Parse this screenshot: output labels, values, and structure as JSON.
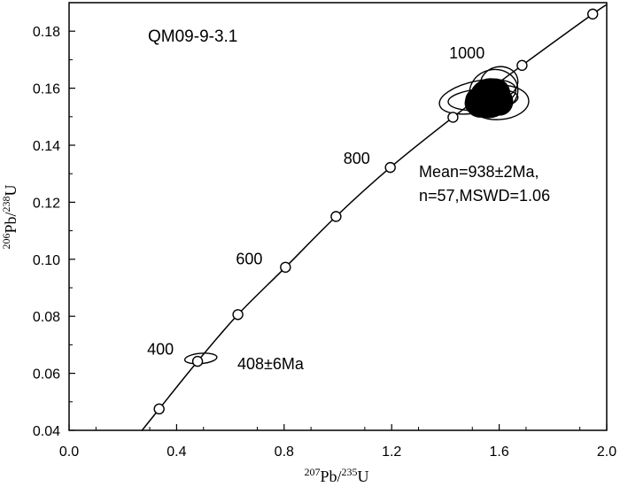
{
  "chart_data": {
    "type": "scatter",
    "title": "QM09-9-3.1",
    "xlabel": {
      "sup1": "207",
      "main1": "Pb/",
      "sup2": "235",
      "main2": "U"
    },
    "ylabel": {
      "sup1": "206",
      "main1": "Pb/",
      "sup2": "238",
      "main2": "U"
    },
    "xlim": [
      0.0,
      2.0
    ],
    "ylim": [
      0.04,
      0.19
    ],
    "x_ticks": [
      "0.0",
      "0.4",
      "0.8",
      "1.2",
      "1.6",
      "2.0"
    ],
    "x_tick_values": [
      0.0,
      0.4,
      0.8,
      1.2,
      1.6,
      2.0
    ],
    "y_ticks": [
      "0.04",
      "0.06",
      "0.08",
      "0.10",
      "0.12",
      "0.14",
      "0.16",
      "0.18"
    ],
    "y_tick_values": [
      0.04,
      0.06,
      0.08,
      0.1,
      0.12,
      0.14,
      0.16,
      0.18
    ],
    "grid": false,
    "concordia_markers": [
      {
        "x": 0.335,
        "y": 0.0475
      },
      {
        "x": 0.478,
        "y": 0.0642
      },
      {
        "x": 0.628,
        "y": 0.0806
      },
      {
        "x": 0.805,
        "y": 0.0972
      },
      {
        "x": 0.993,
        "y": 0.115
      },
      {
        "x": 1.195,
        "y": 0.1322
      },
      {
        "x": 1.428,
        "y": 0.1498
      },
      {
        "x": 1.685,
        "y": 0.168
      },
      {
        "x": 1.948,
        "y": 0.186
      }
    ],
    "age_labels": [
      {
        "text": "400",
        "x": 0.34,
        "y": 0.0665
      },
      {
        "text": "600",
        "x": 0.67,
        "y": 0.0983
      },
      {
        "text": "800",
        "x": 1.07,
        "y": 0.1335
      },
      {
        "text": "1000",
        "x": 1.48,
        "y": 0.1705
      }
    ],
    "error_ellipses_open": [
      {
        "cx": 0.49,
        "cy": 0.0652,
        "rx": 0.06,
        "ry": 0.0018
      },
      {
        "cx": 1.52,
        "cy": 0.157,
        "rx": 0.145,
        "ry": 0.0055
      },
      {
        "cx": 1.6,
        "cy": 0.155,
        "rx": 0.11,
        "ry": 0.006
      },
      {
        "cx": 1.6,
        "cy": 0.162,
        "rx": 0.07,
        "ry": 0.0055
      },
      {
        "cx": 1.54,
        "cy": 0.156,
        "rx": 0.13,
        "ry": 0.0038
      },
      {
        "cx": 1.58,
        "cy": 0.159,
        "rx": 0.09,
        "ry": 0.0075
      }
    ],
    "error_ellipses_filled": [
      {
        "cx": 1.555,
        "cy": 0.1562,
        "rx": 0.085,
        "ry": 0.0055
      },
      {
        "cx": 1.565,
        "cy": 0.1565,
        "rx": 0.075,
        "ry": 0.0068
      },
      {
        "cx": 1.54,
        "cy": 0.1545,
        "rx": 0.06,
        "ry": 0.0045
      },
      {
        "cx": 1.58,
        "cy": 0.158,
        "rx": 0.06,
        "ry": 0.0052
      },
      {
        "cx": 1.52,
        "cy": 0.156,
        "rx": 0.045,
        "ry": 0.004
      },
      {
        "cx": 1.6,
        "cy": 0.1555,
        "rx": 0.05,
        "ry": 0.005
      }
    ],
    "annotations": {
      "young_age": "408±6Ma",
      "mean_line1": "Mean=938±2Ma,",
      "mean_line2": "n=57,MSWD=1.06"
    }
  }
}
